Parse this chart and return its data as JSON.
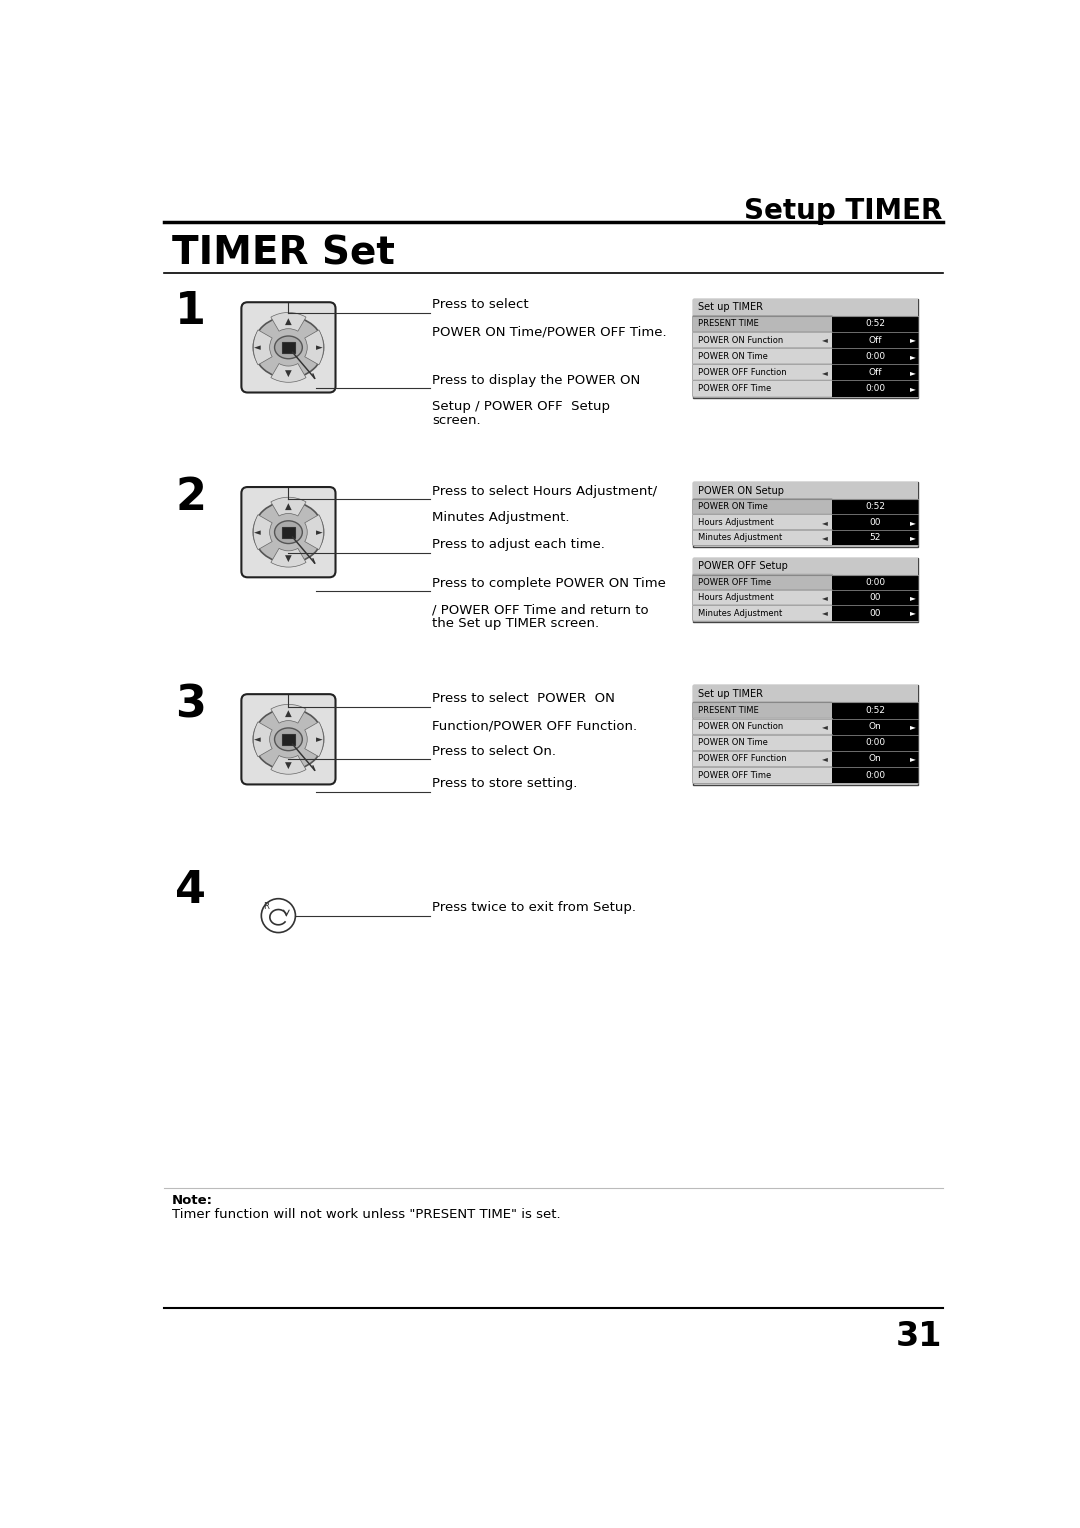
{
  "page_title": "Setup TIMER",
  "section_title": "TIMER Set",
  "bg_color": "#ffffff",
  "step1": {
    "number": "1",
    "instr1_line1": "Press to select",
    "instr1_line2": "POWER ON Time/POWER OFF Time.",
    "instr2_line1": "Press to display the POWER ON",
    "instr2_line2": "Setup / POWER OFF  Setup",
    "instr2_line3": "screen.",
    "screen_title": "Set up TIMER",
    "rows": [
      {
        "label": "PRESENT TIME",
        "value": "0:52",
        "highlight": true,
        "arrow_left": false,
        "arrow_right": false
      },
      {
        "label": "POWER ON Function",
        "value": "Off",
        "highlight": false,
        "arrow_left": true,
        "arrow_right": true
      },
      {
        "label": "POWER ON Time",
        "value": "0:00",
        "highlight": false,
        "arrow_left": false,
        "arrow_right": true
      },
      {
        "label": "POWER OFF Function",
        "value": "Off",
        "highlight": false,
        "arrow_left": true,
        "arrow_right": true
      },
      {
        "label": "POWER OFF Time",
        "value": "0:00",
        "highlight": false,
        "arrow_left": false,
        "arrow_right": true
      }
    ]
  },
  "step2": {
    "number": "2",
    "instr1_line1": "Press to select Hours Adjustment/",
    "instr1_line2": "Minutes Adjustment.",
    "instr2_line1": "Press to adjust each time.",
    "instr3_line1": "Press to complete POWER ON Time",
    "instr3_line2": "/ POWER OFF Time and return to",
    "instr3_line3": "the Set up TIMER screen.",
    "screen1_title": "POWER ON Setup",
    "screen1_rows": [
      {
        "label": "POWER ON Time",
        "value": "0:52",
        "highlight": true,
        "arrow_left": false,
        "arrow_right": false
      },
      {
        "label": "Hours Adjustment",
        "value": "00",
        "highlight": false,
        "arrow_left": true,
        "arrow_right": true
      },
      {
        "label": "Minutes Adjustment",
        "value": "52",
        "highlight": false,
        "arrow_left": true,
        "arrow_right": true
      }
    ],
    "screen2_title": "POWER OFF Setup",
    "screen2_rows": [
      {
        "label": "POWER OFF Time",
        "value": "0:00",
        "highlight": true,
        "arrow_left": false,
        "arrow_right": false
      },
      {
        "label": "Hours Adjustment",
        "value": "00",
        "highlight": false,
        "arrow_left": true,
        "arrow_right": true
      },
      {
        "label": "Minutes Adjustment",
        "value": "00",
        "highlight": false,
        "arrow_left": true,
        "arrow_right": true
      }
    ]
  },
  "step3": {
    "number": "3",
    "instr1_line1": "Press to select  POWER  ON",
    "instr1_line2": "Function/POWER OFF Function.",
    "instr2_line1": "Press to select On.",
    "instr3_line1": "Press to store setting.",
    "screen_title": "Set up TIMER",
    "rows": [
      {
        "label": "PRESENT TIME",
        "value": "0:52",
        "highlight": true,
        "arrow_left": false,
        "arrow_right": false
      },
      {
        "label": "POWER ON Function",
        "value": "On",
        "highlight": false,
        "arrow_left": true,
        "arrow_right": true
      },
      {
        "label": "POWER ON Time",
        "value": "0:00",
        "highlight": false,
        "arrow_left": false,
        "arrow_right": false
      },
      {
        "label": "POWER OFF Function",
        "value": "On",
        "highlight": false,
        "arrow_left": true,
        "arrow_right": true
      },
      {
        "label": "POWER OFF Time",
        "value": "0:00",
        "highlight": false,
        "arrow_left": false,
        "arrow_right": false
      }
    ]
  },
  "step4": {
    "number": "4",
    "instruction": "Press twice to exit from Setup."
  },
  "note_label": "Note:",
  "note_text": "Timer function will not work unless \"PRESENT TIME\" is set.",
  "page_number": "31"
}
